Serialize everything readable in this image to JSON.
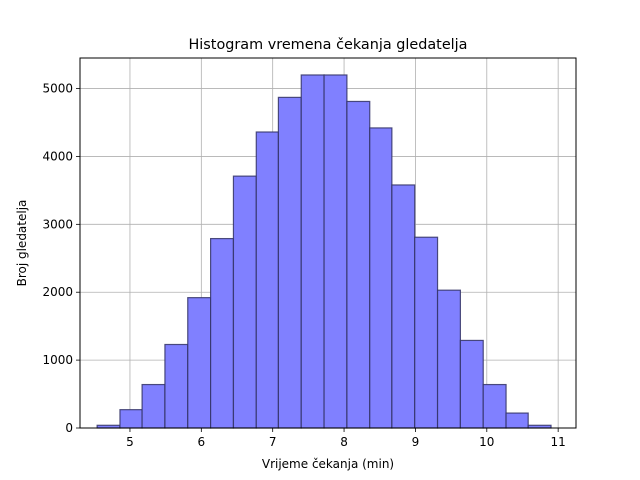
{
  "chart_data": {
    "type": "bar",
    "title": "Histogram vremena čekanja gledatelja",
    "xlabel": "Vrijeme čekanja (min)",
    "ylabel": "Broj gledatelja",
    "xlim": [
      4.3,
      11.25
    ],
    "ylim": [
      0,
      5450
    ],
    "xticks": [
      5,
      6,
      7,
      8,
      9,
      10,
      11
    ],
    "yticks": [
      0,
      1000,
      2000,
      3000,
      4000,
      5000
    ],
    "grid": true,
    "bins": [
      {
        "x0": 4.54,
        "x1": 4.86,
        "count": 40
      },
      {
        "x0": 4.86,
        "x1": 5.17,
        "count": 270
      },
      {
        "x0": 5.17,
        "x1": 5.49,
        "count": 640
      },
      {
        "x0": 5.49,
        "x1": 5.81,
        "count": 1230
      },
      {
        "x0": 5.81,
        "x1": 6.13,
        "count": 1920
      },
      {
        "x0": 6.13,
        "x1": 6.45,
        "count": 2790
      },
      {
        "x0": 6.45,
        "x1": 6.77,
        "count": 3710
      },
      {
        "x0": 6.77,
        "x1": 7.08,
        "count": 4360
      },
      {
        "x0": 7.08,
        "x1": 7.4,
        "count": 4870
      },
      {
        "x0": 7.4,
        "x1": 7.72,
        "count": 5200
      },
      {
        "x0": 7.72,
        "x1": 8.04,
        "count": 5200
      },
      {
        "x0": 8.04,
        "x1": 8.36,
        "count": 4810
      },
      {
        "x0": 8.36,
        "x1": 8.67,
        "count": 4420
      },
      {
        "x0": 8.67,
        "x1": 8.99,
        "count": 3580
      },
      {
        "x0": 8.99,
        "x1": 9.31,
        "count": 2810
      },
      {
        "x0": 9.31,
        "x1": 9.63,
        "count": 2030
      },
      {
        "x0": 9.63,
        "x1": 9.95,
        "count": 1290
      },
      {
        "x0": 9.95,
        "x1": 10.27,
        "count": 640
      },
      {
        "x0": 10.27,
        "x1": 10.58,
        "count": 220
      },
      {
        "x0": 10.58,
        "x1": 10.9,
        "count": 40
      }
    ],
    "colors": {
      "bar_fill": "#8080ff",
      "bar_edge": "#333366",
      "grid": "#b0b0b0",
      "axes": "#000000"
    }
  }
}
